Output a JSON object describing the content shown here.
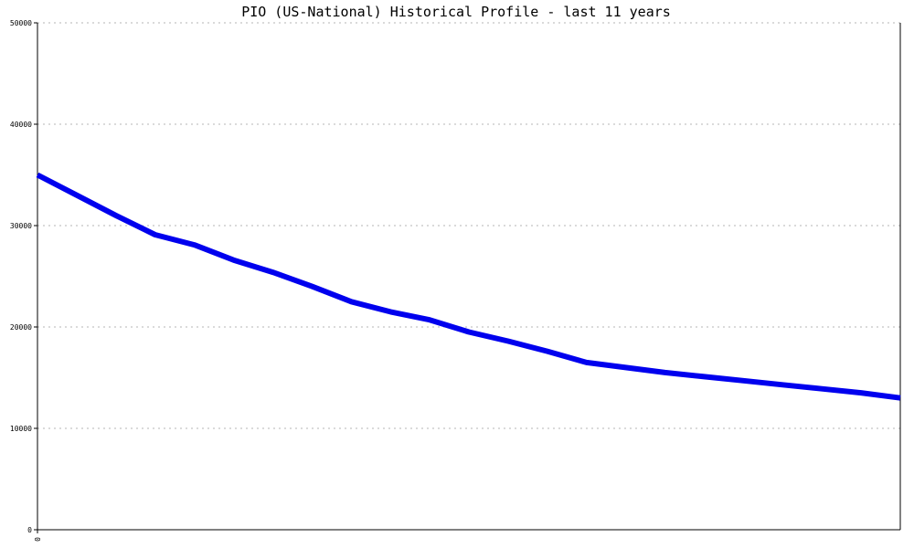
{
  "chart_data": {
    "type": "line",
    "title": "PIO (US-National) Historical Profile - last 11 years",
    "xlabel": "",
    "ylabel": "",
    "ylim": [
      0,
      50000
    ],
    "y_ticks": [
      "0",
      "10000",
      "20000",
      "30000",
      "40000",
      "50000"
    ],
    "x_ticks": [
      "0"
    ],
    "grid": true,
    "legend": "none",
    "line_color": "#0000ee",
    "series": [
      {
        "x": [
          0,
          0.5,
          1,
          1.5,
          2,
          2.5,
          3,
          3.5,
          4,
          4.5,
          5,
          5.5,
          6,
          6.5,
          7,
          7.5,
          8,
          8.5,
          9,
          9.5,
          10,
          10.5,
          11
        ],
        "values": [
          35000,
          33000,
          31000,
          29100,
          28100,
          26600,
          25400,
          24000,
          22500,
          21500,
          20700,
          19500,
          18600,
          17600,
          16500,
          16000,
          15500,
          15100,
          14700,
          14300,
          13900,
          13500,
          13000
        ]
      }
    ]
  }
}
